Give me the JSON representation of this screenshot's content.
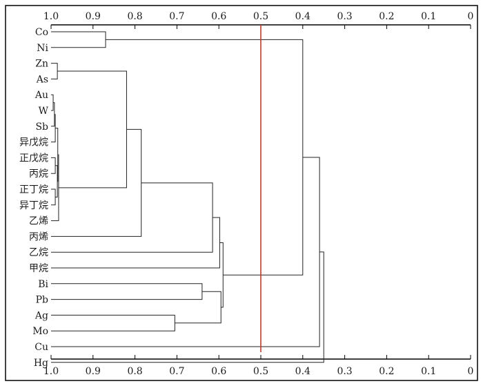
{
  "chart_data": {
    "type": "dendrogram",
    "orientation": "horizontal",
    "x_axis": {
      "range": [
        1.0,
        0.0
      ],
      "ticks": [
        1.0,
        0.9,
        0.8,
        0.7,
        0.6,
        0.5,
        0.4,
        0.3,
        0.2,
        0.1,
        0
      ],
      "tick_labels": [
        "1.0",
        "0.9",
        "0.8",
        "0.7",
        "0.6",
        "0.5",
        "0.4",
        "0.3",
        "0.2",
        "0.1",
        "0"
      ],
      "position": "top-and-bottom"
    },
    "leaves": [
      "Co",
      "Ni",
      "Zn",
      "As",
      "Au",
      "W",
      "Sb",
      "异戊烷",
      "正戊烷",
      "丙烷",
      "正丁烷",
      "异丁烷",
      "乙烯",
      "丙烯",
      "乙烷",
      "甲烷",
      "Bi",
      "Pb",
      "Ag",
      "Mo",
      "Cu",
      "Hg"
    ],
    "merges": [
      {
        "left": "Au",
        "right": "W",
        "height": 0.995
      },
      {
        "left": "正戊烷",
        "right": "丙烷",
        "height": 0.99
      },
      {
        "left": "正丁烷",
        "right": "异丁烷",
        "height": 0.99
      },
      {
        "left": "C1",
        "right": "Sb",
        "height": 0.992
      },
      {
        "left": "C4",
        "right": "异戊烷",
        "height": 0.99
      },
      {
        "left": "C2",
        "right": "C3",
        "height": 0.985
      },
      {
        "left": "C5",
        "right": "C6",
        "height": 0.984
      },
      {
        "left": "C7",
        "right": "乙烯",
        "height": 0.982
      },
      {
        "left": "Zn",
        "right": "As",
        "height": 0.985
      },
      {
        "left": "C9",
        "right": "C8",
        "height": 0.82
      },
      {
        "left": "C10",
        "right": "丙烯",
        "height": 0.785
      },
      {
        "left": "Co",
        "right": "Ni",
        "height": 0.87
      },
      {
        "left": "C11",
        "right": "乙烷",
        "height": 0.615
      },
      {
        "left": "C13",
        "right": "甲烷",
        "height": 0.598
      },
      {
        "left": "Bi",
        "right": "Pb",
        "height": 0.64
      },
      {
        "left": "Ag",
        "right": "Mo",
        "height": 0.705
      },
      {
        "left": "C15",
        "right": "C16",
        "height": 0.595
      },
      {
        "left": "C14",
        "right": "C17",
        "height": 0.59
      },
      {
        "left": "C12",
        "right": "C18",
        "height": 0.4
      },
      {
        "left": "C19",
        "right": "Cu",
        "height": 0.36
      },
      {
        "left": "C20",
        "right": "Hg",
        "height": 0.35
      }
    ],
    "cut_line": {
      "value": 0.5,
      "color": "#c0392b"
    }
  }
}
